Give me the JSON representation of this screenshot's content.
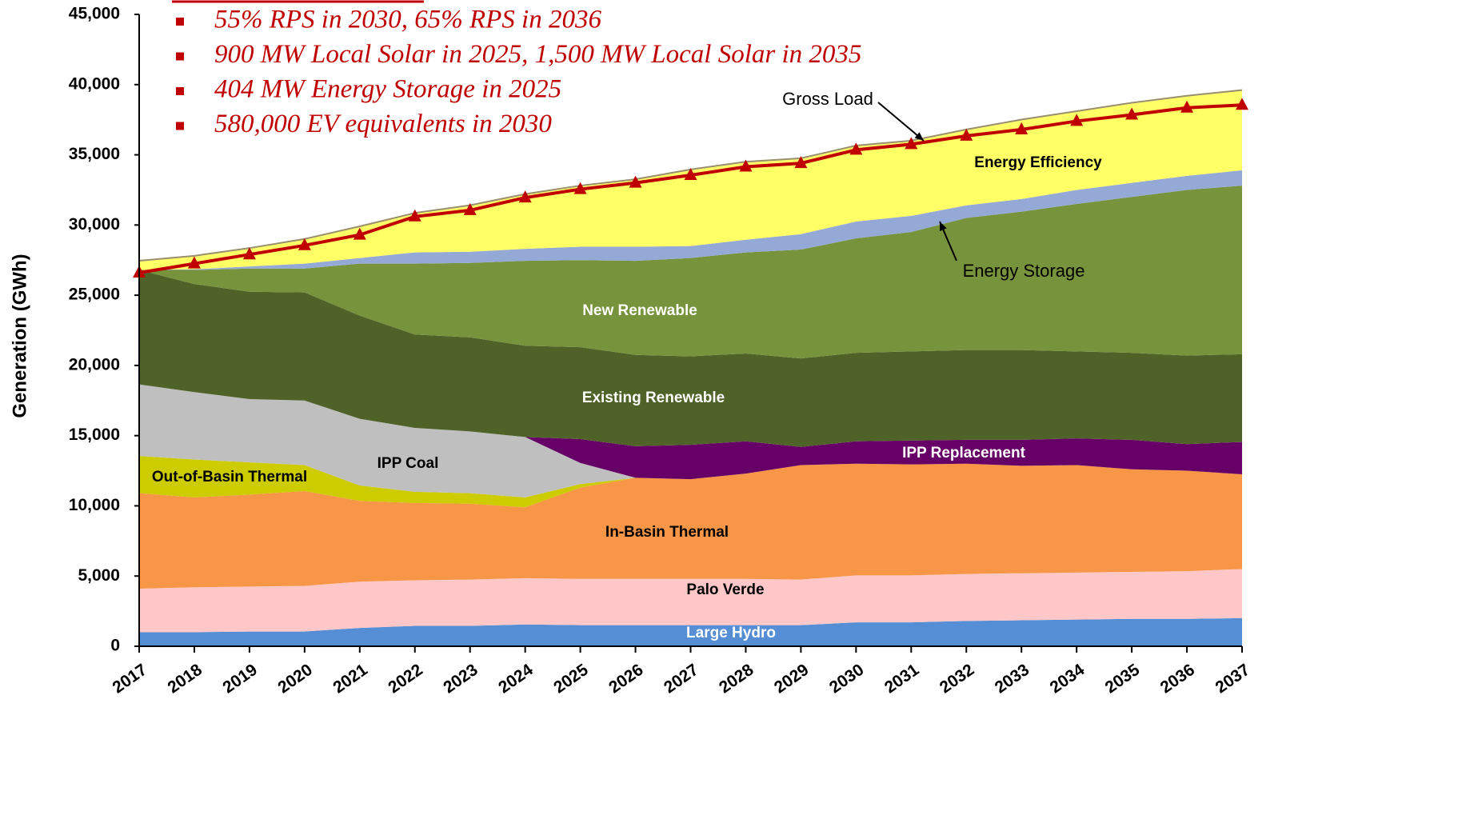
{
  "chart_data": {
    "type": "area",
    "stacked": true,
    "annotations": [
      "55% RPS in 2030, 65% RPS in 2036",
      "900 MW Local Solar in 2025, 1,500 MW Local Solar in 2035",
      "404 MW Energy Storage in 2025",
      "580,000 EV equivalents in 2030"
    ],
    "ylabel": "Generation (GWh)",
    "x": [
      2017,
      2018,
      2019,
      2020,
      2021,
      2022,
      2023,
      2024,
      2025,
      2026,
      2027,
      2028,
      2029,
      2030,
      2031,
      2032,
      2033,
      2034,
      2035,
      2036,
      2037
    ],
    "xlim": [
      2017,
      2037
    ],
    "xticks": [
      2017,
      2018,
      2019,
      2020,
      2021,
      2022,
      2023,
      2024,
      2025,
      2026,
      2027,
      2028,
      2029,
      2030,
      2031,
      2032,
      2033,
      2034,
      2035,
      2036,
      2037
    ],
    "ylim": [
      0,
      45000
    ],
    "yticks": [
      0,
      {
        "value": 5000,
        "label": "5,000"
      },
      {
        "value": 10000,
        "label": "10,000"
      },
      {
        "value": 15000,
        "label": "15,000"
      },
      {
        "value": 20000,
        "label": "20,000"
      },
      {
        "value": 25000,
        "label": "25,000"
      },
      {
        "value": 30000,
        "label": "30,000"
      },
      {
        "value": 35000,
        "label": "35,000"
      },
      {
        "value": 40000,
        "label": "40,000"
      },
      {
        "value": 45000,
        "label": "45,000"
      }
    ],
    "series": [
      {
        "name": "Large Hydro",
        "color": "#558ed5",
        "values": [
          1000,
          1000,
          1050,
          1050,
          1300,
          1450,
          1450,
          1550,
          1500,
          1500,
          1500,
          1500,
          1500,
          1700,
          1700,
          1800,
          1850,
          1900,
          1950,
          1950,
          2000
        ]
      },
      {
        "name": "Palo Verde",
        "color": "#ffc7c7",
        "values": [
          3100,
          3200,
          3200,
          3250,
          3300,
          3250,
          3300,
          3300,
          3300,
          3300,
          3300,
          3300,
          3250,
          3350,
          3350,
          3350,
          3350,
          3350,
          3350,
          3400,
          3500
        ]
      },
      {
        "name": "In-Basin Thermal",
        "color": "#f79646",
        "values": [
          6800,
          6400,
          6550,
          6750,
          5750,
          5500,
          5400,
          5050,
          6500,
          7200,
          7100,
          7500,
          8150,
          7950,
          7900,
          7850,
          7650,
          7650,
          7300,
          7150,
          6750
        ]
      },
      {
        "name": "Out-of-Basin Thermal",
        "color": "#cccc00",
        "values": [
          2650,
          2700,
          2300,
          1850,
          1100,
          800,
          750,
          700,
          250,
          0,
          0,
          0,
          0,
          0,
          0,
          0,
          0,
          0,
          0,
          0,
          0
        ]
      },
      {
        "name": "IPP Coal",
        "color": "#bfbfbf",
        "values": [
          5100,
          4800,
          4500,
          4600,
          4750,
          4550,
          4400,
          4300,
          1500,
          0,
          0,
          0,
          0,
          0,
          0,
          0,
          0,
          0,
          0,
          0,
          0
        ]
      },
      {
        "name": "IPP Replacement",
        "color": "#660066",
        "values": [
          0,
          0,
          0,
          0,
          0,
          0,
          0,
          0,
          1700,
          2250,
          2450,
          2300,
          1300,
          1600,
          1700,
          1700,
          1850,
          1900,
          2100,
          1900,
          2300
        ]
      },
      {
        "name": "Existing Renewable",
        "color": "#4f6228",
        "values": [
          8150,
          7700,
          7650,
          7700,
          7350,
          6650,
          6700,
          6500,
          6550,
          6500,
          6300,
          6250,
          6300,
          6300,
          6350,
          6400,
          6400,
          6200,
          6200,
          6300,
          6250
        ]
      },
      {
        "name": "New Renewable",
        "color": "#77933c",
        "values": [
          0,
          1000,
          1650,
          1700,
          3700,
          5050,
          5300,
          6050,
          6200,
          6700,
          7000,
          7200,
          7750,
          8150,
          8500,
          9400,
          9850,
          10500,
          11100,
          11800,
          12000
        ]
      },
      {
        "name": "Energy Storage",
        "color": "#95a9d6",
        "values": [
          0,
          50,
          150,
          350,
          400,
          800,
          800,
          850,
          950,
          1000,
          850,
          900,
          1100,
          1200,
          1150,
          900,
          900,
          1000,
          1000,
          1000,
          1100
        ]
      },
      {
        "name": "Energy Efficiency",
        "color": "#ffff66",
        "values": [
          600,
          900,
          1250,
          1700,
          2200,
          2750,
          3250,
          3850,
          4300,
          4750,
          5400,
          5500,
          5350,
          5350,
          5300,
          5350,
          5600,
          5550,
          5650,
          5650,
          5650
        ]
      },
      {
        "name": "Gross Load",
        "type": "line",
        "marker": "triangle",
        "color": "#c00000",
        "values": [
          26600,
          27250,
          27900,
          28550,
          29300,
          30600,
          31050,
          31950,
          32550,
          33000,
          33550,
          34150,
          34400,
          35350,
          35750,
          36350,
          36800,
          37400,
          37850,
          38350,
          38550
        ]
      }
    ]
  }
}
